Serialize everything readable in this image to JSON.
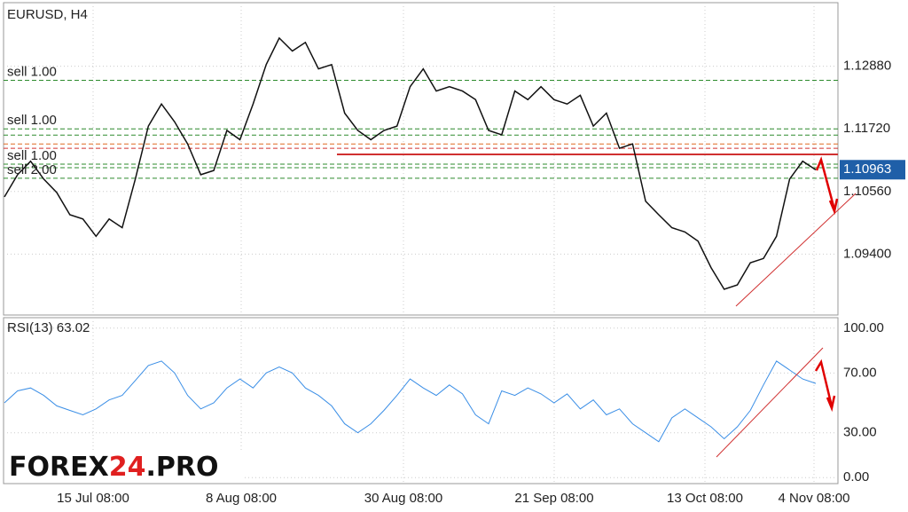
{
  "chart_data": [
    {
      "type": "line",
      "title": "EURUSD, H4",
      "color": "#111111",
      "values": [
        1.1046,
        1.1087,
        1.1112,
        1.1079,
        1.1054,
        1.1013,
        1.1005,
        1.0973,
        1.1005,
        1.0989,
        1.1079,
        1.1177,
        1.1218,
        1.1185,
        1.1144,
        1.1087,
        1.1095,
        1.1169,
        1.1152,
        1.1218,
        1.1291,
        1.134,
        1.1316,
        1.1332,
        1.1283,
        1.1291,
        1.1201,
        1.1169,
        1.1152,
        1.1169,
        1.1177,
        1.125,
        1.1283,
        1.1242,
        1.125,
        1.1242,
        1.1226,
        1.1169,
        1.1161,
        1.1242,
        1.1226,
        1.125,
        1.1226,
        1.1218,
        1.1234,
        1.1177,
        1.1201,
        1.1136,
        1.1144,
        1.1038,
        1.1013,
        1.0989,
        1.0981,
        1.0964,
        1.0915,
        1.0875,
        1.0883,
        1.0924,
        1.0932,
        1.0973,
        1.1079,
        1.1112,
        1.1096
      ],
      "ylim": [
        1.08273,
        1.14056
      ],
      "yticks": [
        {
          "value": 1.1288,
          "label": "1.12880"
        },
        {
          "value": 1.1172,
          "label": "1.11720"
        },
        {
          "value": 1.1056,
          "label": "1.10560"
        },
        {
          "value": 1.094,
          "label": "1.09400"
        }
      ],
      "current_price": 1.10963,
      "levels": [
        {
          "value": 1.12618,
          "label": "sell 1.00",
          "color": "#2e8b2e"
        },
        {
          "value": 1.1172,
          "label": "sell 1.00",
          "color": "#2e8b2e"
        },
        {
          "value": 1.11605,
          "color": "#2e8b2e"
        },
        {
          "value": 1.1144,
          "color": "#e06a20"
        },
        {
          "value": 1.1136,
          "color": "#d03030"
        },
        {
          "value": 1.11246,
          "color": "#d03030",
          "solid": true
        },
        {
          "value": 1.11066,
          "label": "sell 1.00",
          "color": "#2e8b2e"
        },
        {
          "value": 1.11001,
          "color": "#2e8b2e"
        },
        {
          "value": 1.10805,
          "label": "sell 2.00",
          "color": "#2e8b2e"
        }
      ],
      "grid": true
    },
    {
      "type": "line",
      "title": "RSI(13) 63.02",
      "color": "#3a8ee6",
      "values": [
        50,
        58,
        60,
        55,
        48,
        45,
        42,
        46,
        52,
        55,
        65,
        75,
        78,
        70,
        55,
        46,
        50,
        60,
        66,
        60,
        70,
        74,
        70,
        60,
        55,
        48,
        36,
        30,
        36,
        45,
        55,
        66,
        60,
        55,
        62,
        56,
        42,
        36,
        58,
        55,
        60,
        56,
        50,
        56,
        46,
        52,
        42,
        46,
        36,
        30,
        24,
        40,
        46,
        40,
        34,
        26,
        34,
        45,
        62,
        78,
        72,
        66,
        63
      ],
      "ylim": [
        -4,
        107
      ],
      "yticks": [
        {
          "value": 100,
          "label": "100.00"
        },
        {
          "value": 70,
          "label": "70.00"
        },
        {
          "value": 30,
          "label": "30.00"
        },
        {
          "value": 0,
          "label": "0.00"
        }
      ],
      "x_tick_labels": [
        "15 Jul 08:00",
        "8 Aug 08:00",
        "30 Aug 08:00",
        "21 Sep 08:00",
        "13 Oct 08:00",
        "4 Nov 08:00"
      ],
      "grid": true
    }
  ],
  "logo": {
    "main": "FOREX",
    "accent": "24",
    "suffix": ".PRO"
  }
}
